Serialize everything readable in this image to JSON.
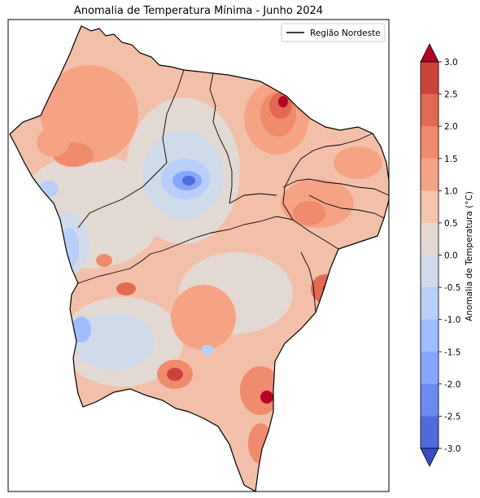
{
  "title": "Anomalia de Temperatura Mínima - Junho 2024",
  "legend": {
    "label": "Região Nordeste",
    "line_color": "#000000"
  },
  "colorbar": {
    "label": "Anomalia de Temperatura (°C)",
    "ticks": [
      "3.0",
      "2.5",
      "2.0",
      "1.5",
      "1.0",
      "0.5",
      "0.0",
      "-0.5",
      "-1.0",
      "-1.5",
      "-2.0",
      "-2.5",
      "-3.0"
    ],
    "colors": [
      "#b40426",
      "#cd423b",
      "#e26952",
      "#f08b6e",
      "#f6a385",
      "#f4c4ad",
      "#e3d9d3",
      "#cfdaea",
      "#b7cff9",
      "#9ebeff",
      "#85a8fc",
      "#6a8bef",
      "#506bda",
      "#3b4cc0"
    ]
  }
}
